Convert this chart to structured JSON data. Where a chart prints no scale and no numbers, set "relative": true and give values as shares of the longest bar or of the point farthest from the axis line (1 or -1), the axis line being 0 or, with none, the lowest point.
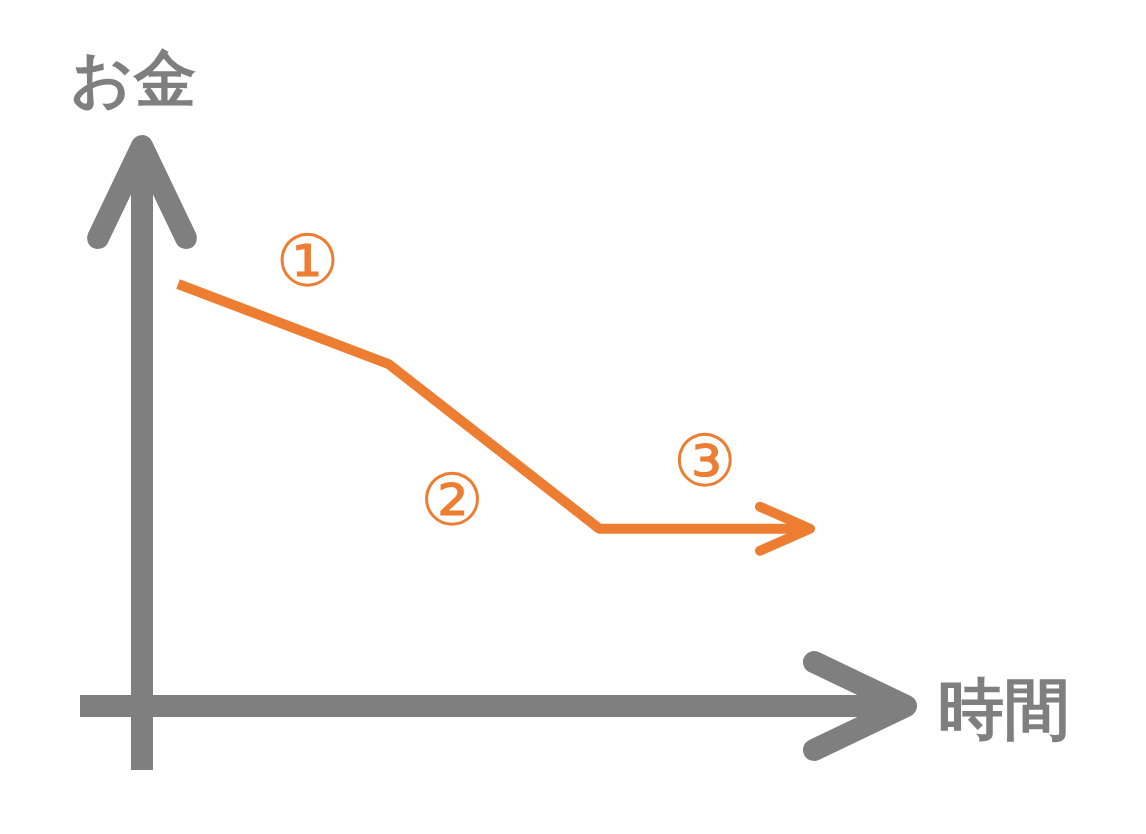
{
  "chart_data": {
    "type": "line",
    "relative": true,
    "xlabel": "時間",
    "ylabel": "お金",
    "categories": [
      null,
      null,
      null,
      null
    ],
    "series": [
      {
        "color": "#ed7d31",
        "values": [
          1,
          0.81,
          0.42,
          0.42
        ]
      }
    ],
    "annotations": [
      "①",
      "②",
      "③"
    ]
  }
}
